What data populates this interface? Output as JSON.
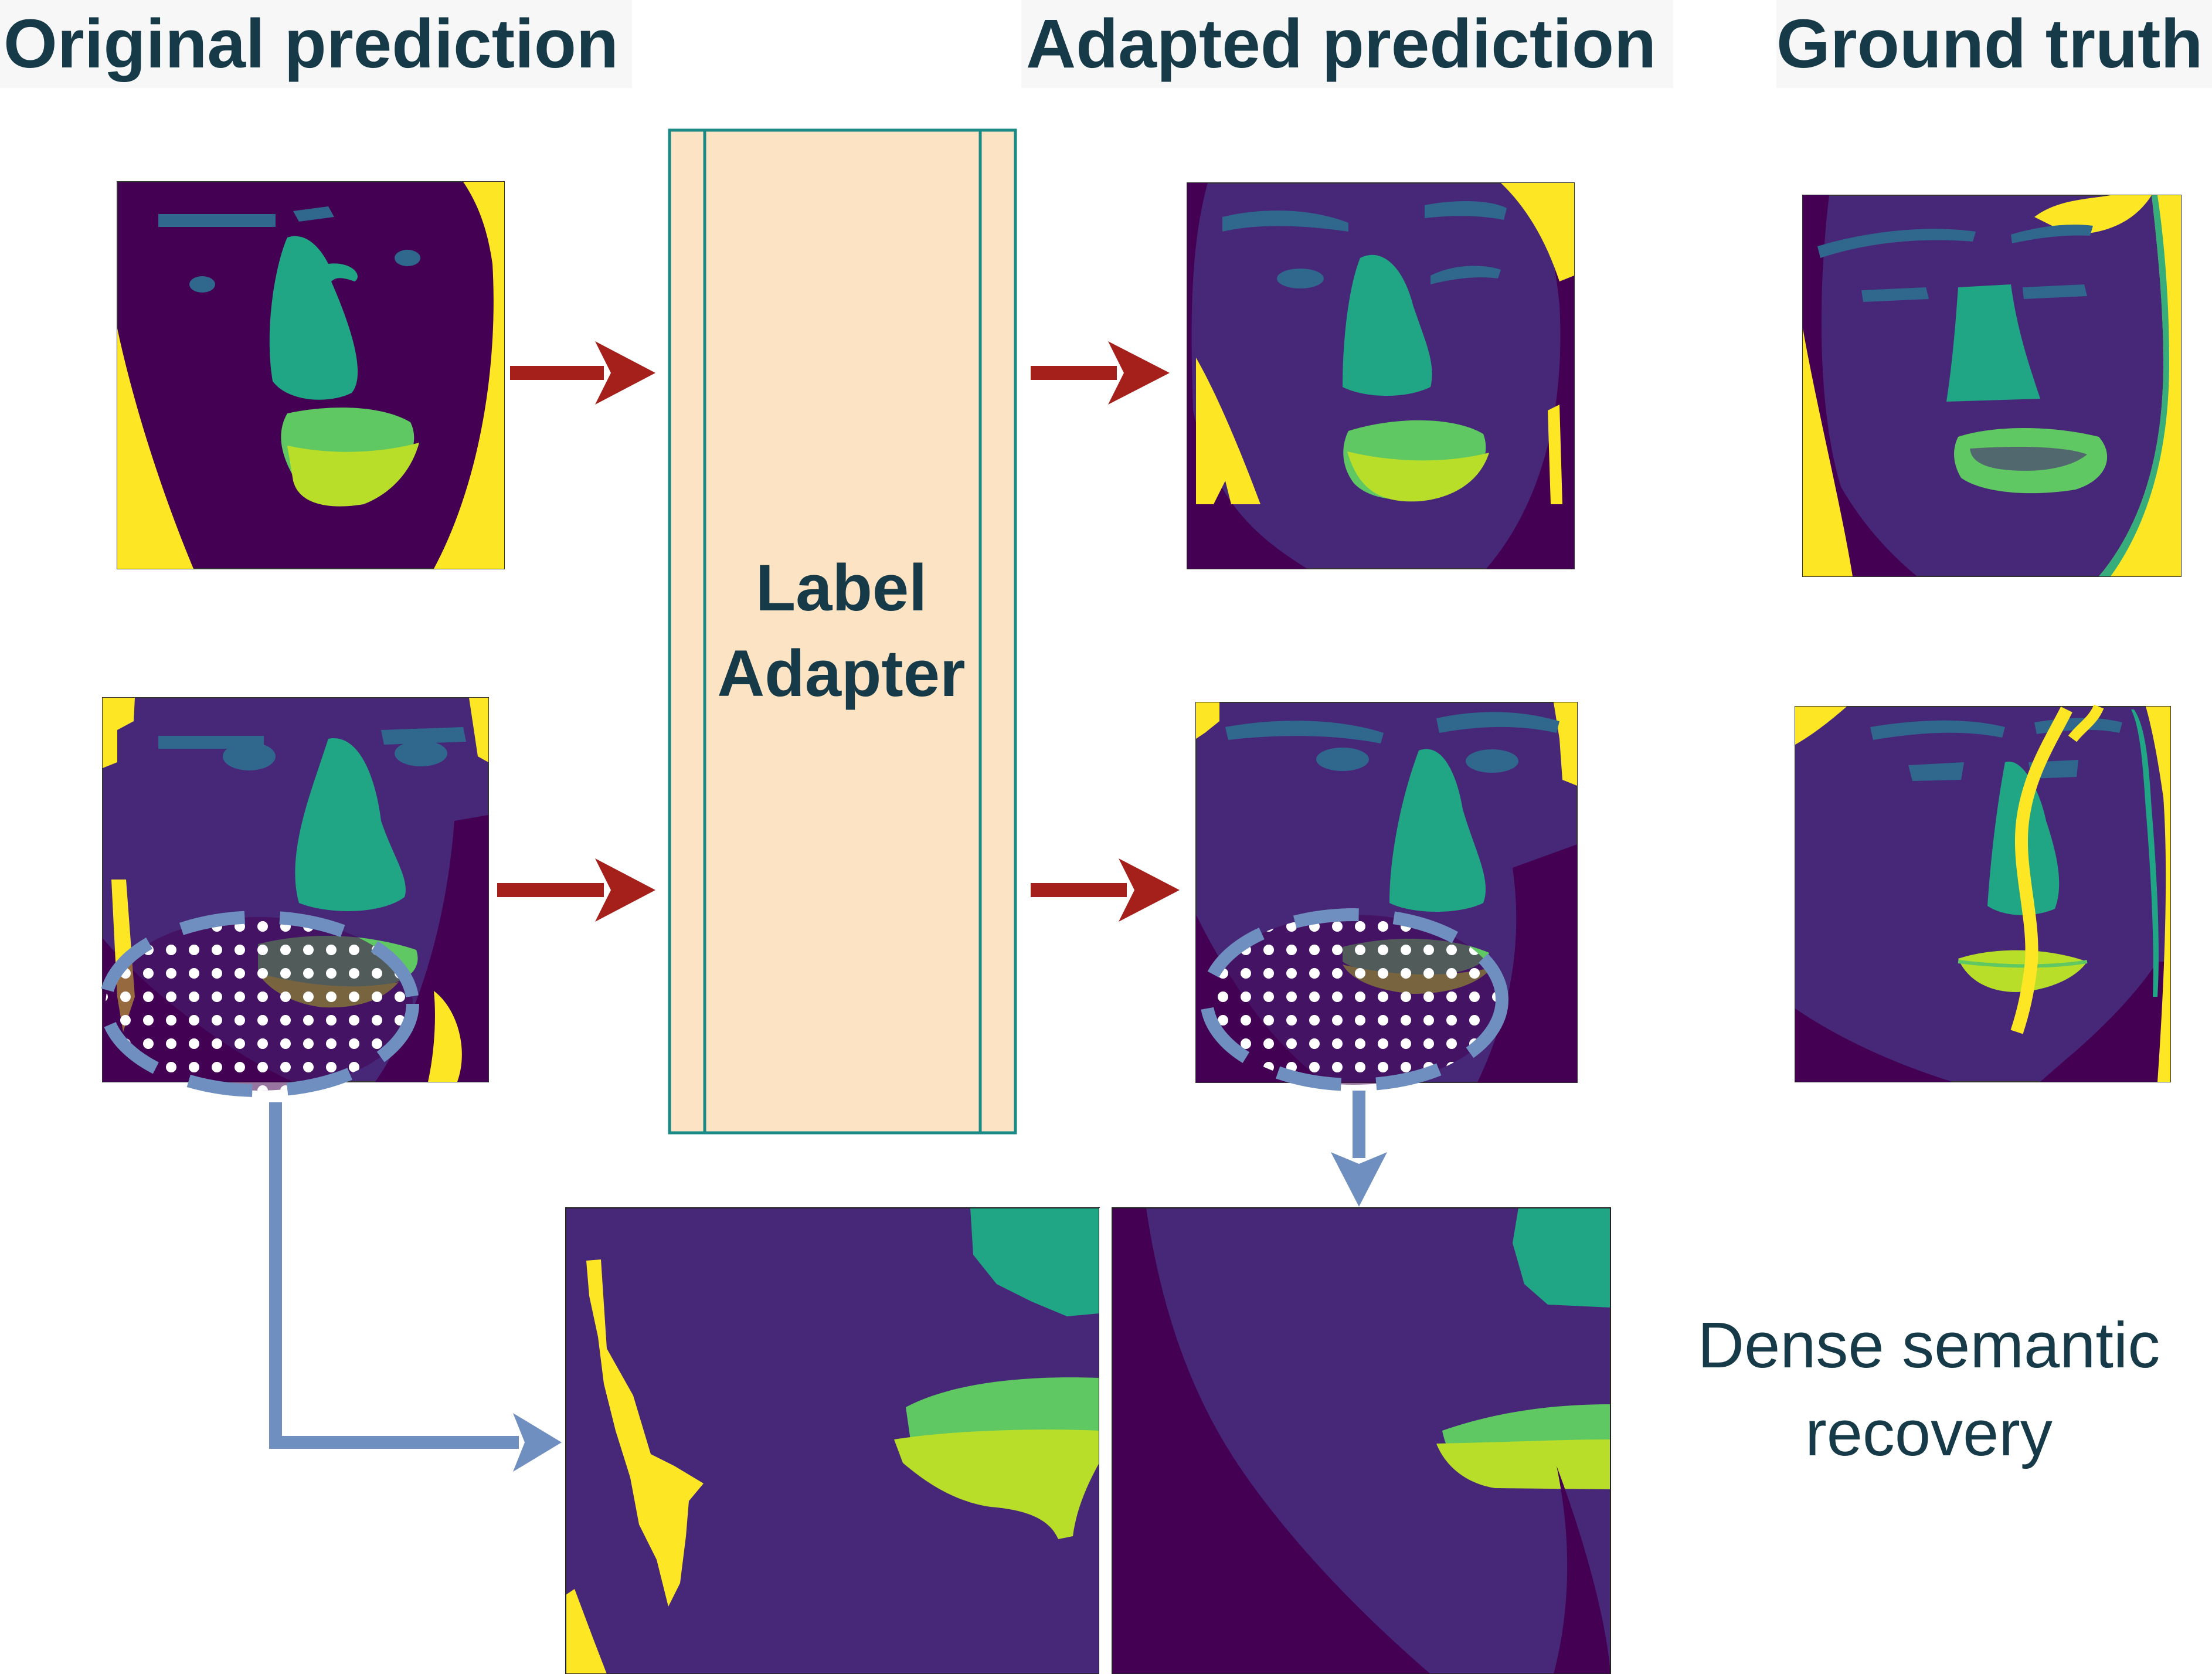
{
  "headings": {
    "original": "Original prediction",
    "adapted": "Adapted prediction",
    "ground_truth": "Ground truth"
  },
  "adapter": {
    "line1": "Label",
    "line2": "Adapter"
  },
  "caption": {
    "line1": "Dense semantic",
    "line2": "recovery"
  },
  "colors": {
    "background": "#440154",
    "face_skin": "#472878",
    "brows_eyes": "#30678d",
    "nose": "#21a685",
    "upper_lip": "#5fc862",
    "lower_lip": "#b8de29",
    "hair": "#fde725",
    "adapter_fill": "#fbe3c4",
    "adapter_border": "#1a8a86",
    "flow_arrow": "#a5201b",
    "zoom_arrow": "#6e8fbf",
    "text": "#163a48"
  }
}
